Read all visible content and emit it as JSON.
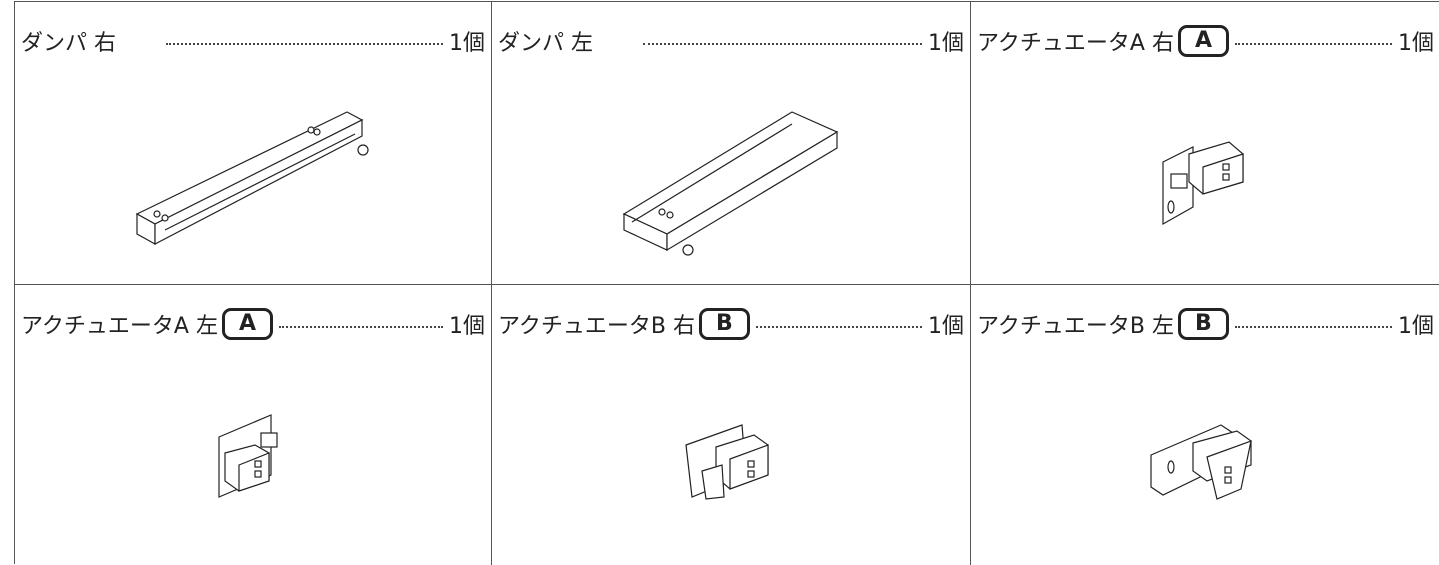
{
  "items": [
    {
      "name": "ダンパ 右",
      "quantity": "1個"
    },
    {
      "name": "ダンパ 左",
      "quantity": "1個"
    },
    {
      "name": "アクチュエータA 右",
      "badge": "A",
      "quantity": "1個"
    },
    {
      "name": "アクチュエータA 左",
      "badge": "A",
      "quantity": "1個"
    },
    {
      "name": "アクチュエータB 右",
      "badge": "B",
      "quantity": "1個"
    },
    {
      "name": "アクチュエータB 左",
      "badge": "B",
      "quantity": "1個"
    }
  ]
}
